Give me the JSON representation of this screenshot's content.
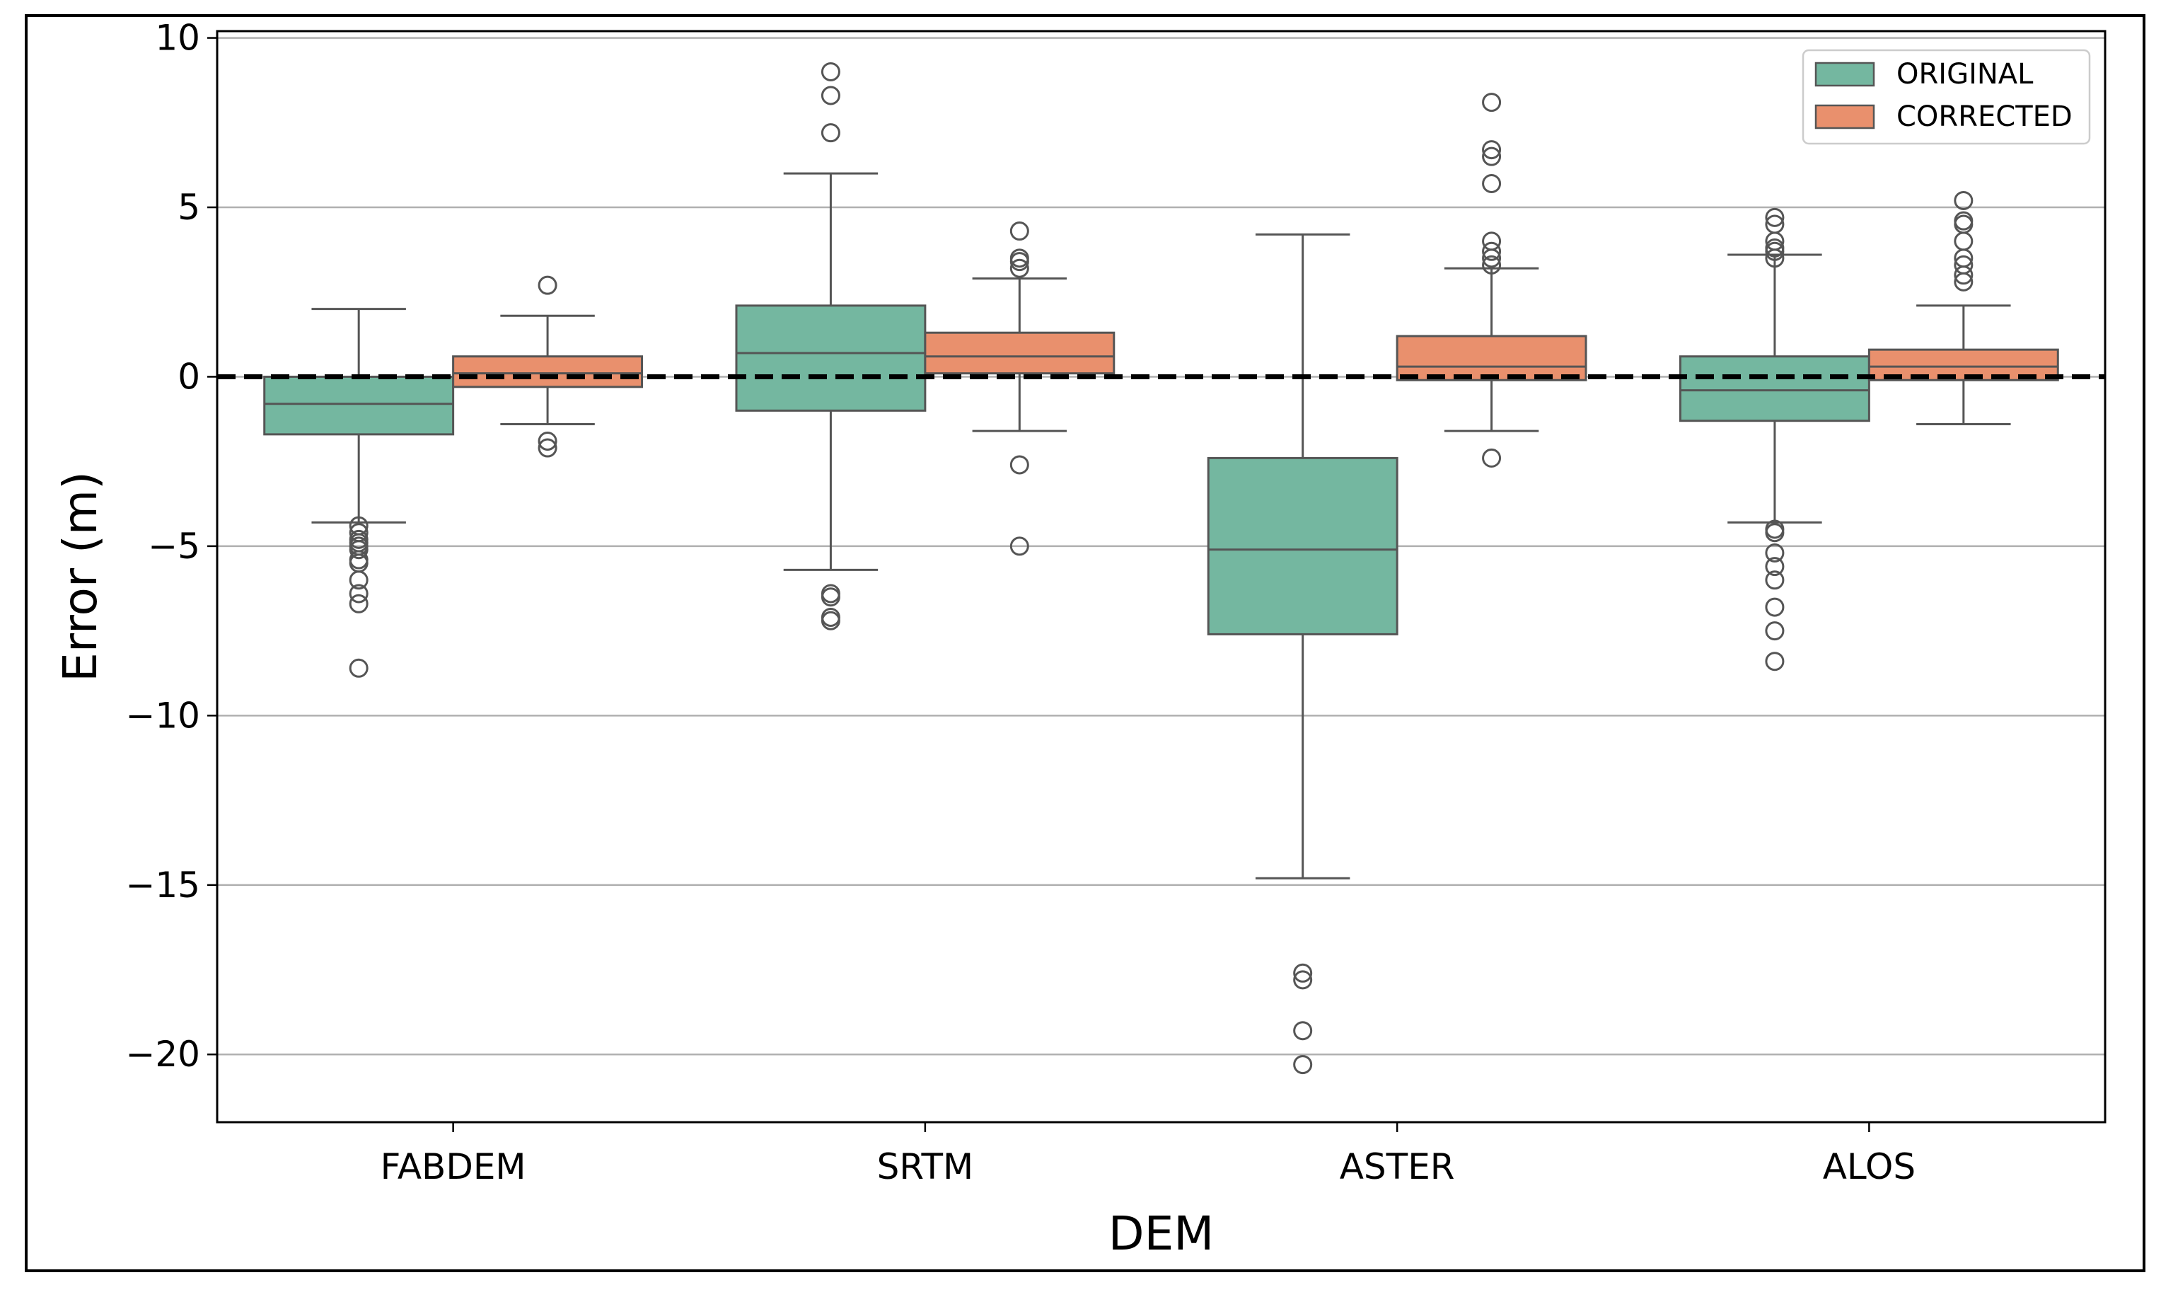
{
  "chart_data": {
    "type": "boxplot",
    "xlabel": "DEM",
    "ylabel": "Error (m)",
    "ylim": [
      -22,
      10.2
    ],
    "yticks": [
      10,
      5,
      0,
      -5,
      -10,
      -15,
      -20
    ],
    "ytick_labels": [
      "10",
      "5",
      "0",
      "−5",
      "−10",
      "−15",
      "−20"
    ],
    "categories": [
      "FABDEM",
      "SRTM",
      "ASTER",
      "ALOS"
    ],
    "grid": "horizontal",
    "reference_line": {
      "y": 0,
      "style": "dashed",
      "color": "#000000"
    },
    "legend_position": "top-right",
    "series": [
      {
        "name": "ORIGINAL",
        "color": "#74b7a0",
        "boxes": [
          {
            "category": "FABDEM",
            "whisker_low": -4.3,
            "q1": -1.7,
            "median": -0.8,
            "q3": 0.0,
            "whisker_high": 2.0,
            "outliers": [
              -4.4,
              -4.6,
              -4.8,
              -4.9,
              -5.0,
              -5.1,
              -5.4,
              -5.5,
              -6.0,
              -6.4,
              -6.7,
              -8.6
            ]
          },
          {
            "category": "SRTM",
            "whisker_low": -5.7,
            "q1": -1.0,
            "median": 0.7,
            "q3": 2.1,
            "whisker_high": 6.0,
            "outliers": [
              9.0,
              8.3,
              7.2,
              -6.4,
              -6.5,
              -7.1,
              -7.2
            ]
          },
          {
            "category": "ASTER",
            "whisker_low": -14.8,
            "q1": -7.6,
            "median": -5.1,
            "q3": -2.4,
            "whisker_high": 4.2,
            "outliers": [
              -17.6,
              -17.8,
              -19.3,
              -20.3
            ]
          },
          {
            "category": "ALOS",
            "whisker_low": -4.3,
            "q1": -1.3,
            "median": -0.4,
            "q3": 0.6,
            "whisker_high": 3.6,
            "outliers": [
              4.7,
              4.5,
              4.0,
              3.8,
              3.7,
              3.5,
              -4.5,
              -4.6,
              -5.2,
              -5.6,
              -6.0,
              -6.8,
              -7.5,
              -8.4
            ]
          }
        ]
      },
      {
        "name": "CORRECTED",
        "color": "#e9906d",
        "boxes": [
          {
            "category": "FABDEM",
            "whisker_low": -1.4,
            "q1": -0.3,
            "median": 0.1,
            "q3": 0.6,
            "whisker_high": 1.8,
            "outliers": [
              2.7,
              -1.9,
              -2.1
            ]
          },
          {
            "category": "SRTM",
            "whisker_low": -1.6,
            "q1": 0.1,
            "median": 0.6,
            "q3": 1.3,
            "whisker_high": 2.9,
            "outliers": [
              4.3,
              3.5,
              3.4,
              3.2,
              -2.6,
              -5.0
            ]
          },
          {
            "category": "ASTER",
            "whisker_low": -1.6,
            "q1": -0.1,
            "median": 0.3,
            "q3": 1.2,
            "whisker_high": 3.2,
            "outliers": [
              8.1,
              6.7,
              6.5,
              5.7,
              4.0,
              3.7,
              3.5,
              3.3,
              -2.4
            ]
          },
          {
            "category": "ALOS",
            "whisker_low": -1.4,
            "q1": -0.1,
            "median": 0.3,
            "q3": 0.8,
            "whisker_high": 2.1,
            "outliers": [
              5.2,
              4.6,
              4.5,
              4.0,
              3.5,
              3.3,
              3.0,
              2.8
            ]
          }
        ]
      }
    ]
  }
}
